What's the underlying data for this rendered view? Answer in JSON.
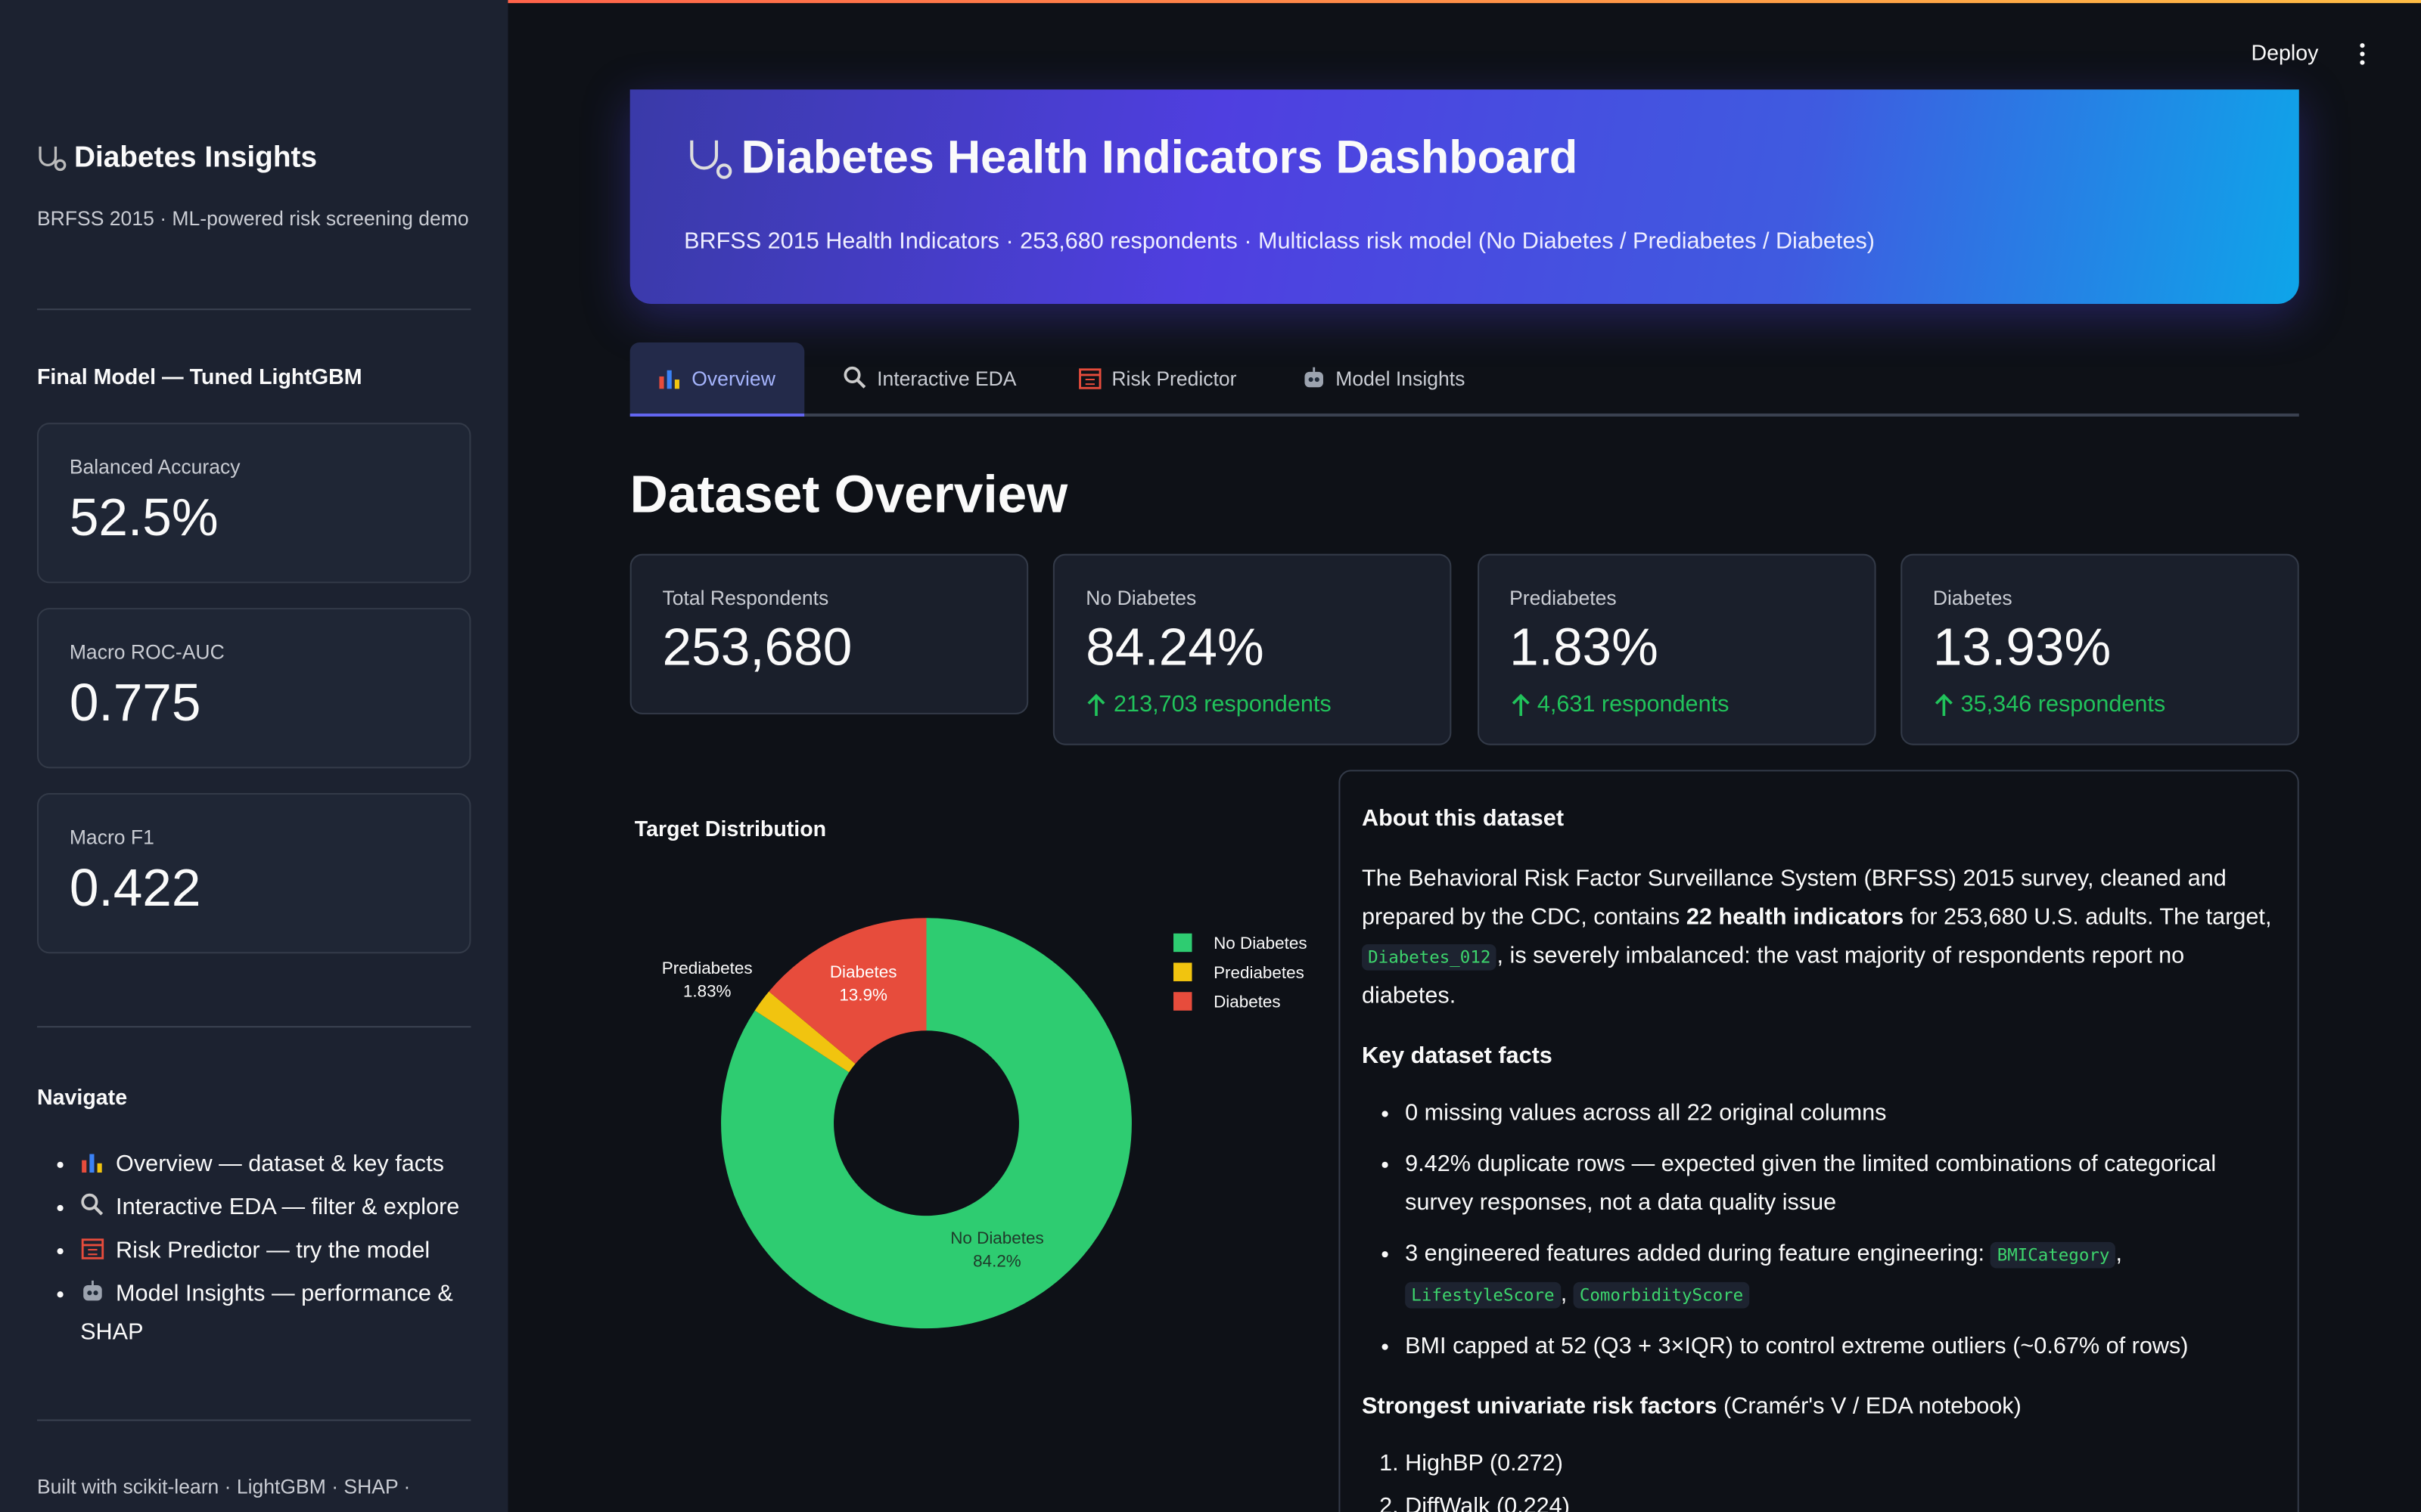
{
  "app_bar": {
    "deploy": "Deploy"
  },
  "sidebar": {
    "title": "Diabetes Insights",
    "subtitle": "BRFSS 2015 · ML-powered risk screening demo",
    "model_heading": "Final Model — Tuned LightGBM",
    "metrics": [
      {
        "label": "Balanced Accuracy",
        "value": "52.5%"
      },
      {
        "label": "Macro ROC-AUC",
        "value": "0.775"
      },
      {
        "label": "Macro F1",
        "value": "0.422"
      }
    ],
    "nav_heading": "Navigate",
    "nav": [
      "Overview — dataset & key facts",
      "Interactive EDA — filter & explore",
      "Risk Predictor — try the model",
      "Model Insights — performance & SHAP"
    ],
    "footer": "Built with scikit-learn · LightGBM · SHAP ·"
  },
  "header": {
    "title": "Diabetes Health Indicators Dashboard",
    "subtitle": "BRFSS 2015 Health Indicators · 253,680 respondents · Multiclass risk model (No Diabetes / Prediabetes / Diabetes)"
  },
  "tabs": [
    "Overview",
    "Interactive EDA",
    "Risk Predictor",
    "Model Insights"
  ],
  "overview": {
    "heading": "Dataset Overview",
    "metrics": [
      {
        "label": "Total Respondents",
        "value": "253,680"
      },
      {
        "label": "No Diabetes",
        "value": "84.24%",
        "delta": "213,703 respondents"
      },
      {
        "label": "Prediabetes",
        "value": "1.83%",
        "delta": "4,631 respondents"
      },
      {
        "label": "Diabetes",
        "value": "13.93%",
        "delta": "35,346 respondents"
      }
    ]
  },
  "chart_data": {
    "type": "pie",
    "title": "Target Distribution",
    "donut": true,
    "categories": [
      "No Diabetes",
      "Prediabetes",
      "Diabetes"
    ],
    "values": [
      84.2,
      1.83,
      13.9
    ],
    "value_labels": [
      "84.2%",
      "1.83%",
      "13.9%"
    ],
    "colors": [
      "#2ecc71",
      "#f1c40f",
      "#e74c3c"
    ],
    "legend": "right"
  },
  "about": {
    "title": "About this dataset",
    "intro": [
      "The Behavioral Risk Factor Surveillance System (BRFSS) 2015 survey, cleaned and prepared by the CDC, contains ",
      "22 health indicators",
      " for 253,680 U.S. adults. The target, ",
      "Diabetes_012",
      ", is severely imbalanced: the vast majority of respondents report no diabetes."
    ],
    "facts_heading": "Key dataset facts",
    "facts": [
      [
        "0 missing values across all 22 original columns"
      ],
      [
        "9.42% duplicate rows — expected given the limited combinations of categorical survey responses, not a data quality issue"
      ],
      [
        "3 engineered features added during feature engineering: ",
        "BMICategory",
        ", ",
        "LifestyleScore",
        ", ",
        "ComorbidityScore"
      ],
      [
        "BMI capped at 52 (Q3 + 3×IQR) to control extreme outliers (~0.67% of rows)"
      ]
    ],
    "risk_heading": "Strongest univariate risk factors",
    "risk_note": "(Cramér's V / EDA notebook)",
    "risk_factors": [
      "HighBP (0.272)",
      "DiffWalk (0.224)"
    ]
  }
}
